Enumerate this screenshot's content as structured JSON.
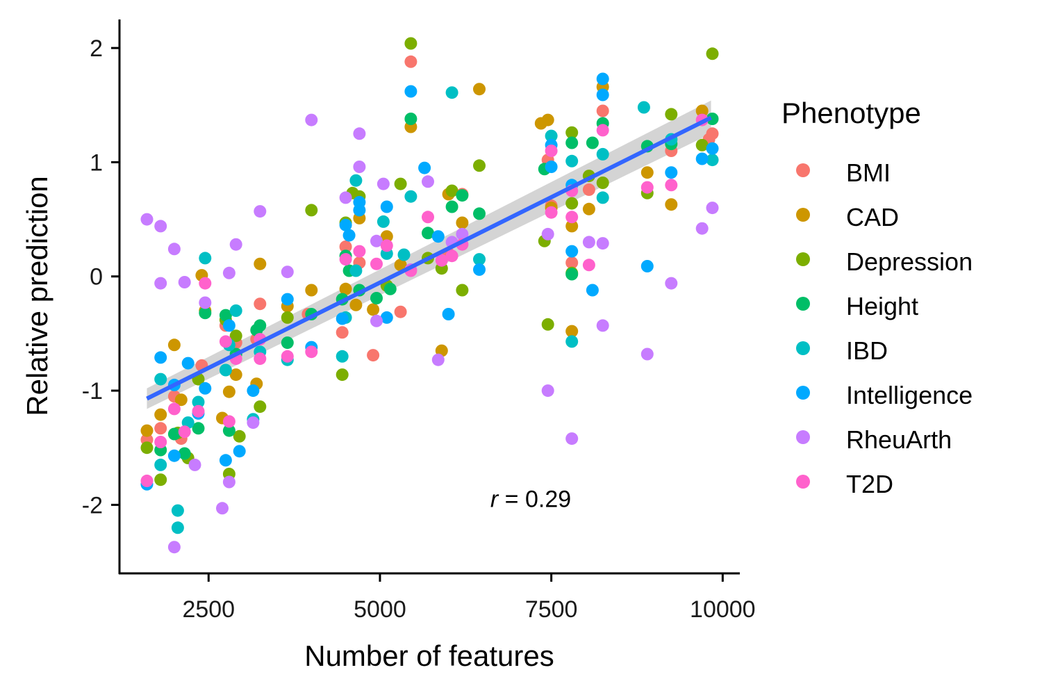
{
  "chart_data": {
    "type": "scatter",
    "xlabel": "Number of features",
    "ylabel": "Relative prediction",
    "xlim": [
      1200,
      10250
    ],
    "ylim": [
      -2.6,
      2.25
    ],
    "xticks": [
      2500,
      5000,
      7500,
      10000
    ],
    "xtick_labels": [
      "2500",
      "5000",
      "7500",
      "10000"
    ],
    "yticks": [
      -2,
      -1,
      0,
      1,
      2
    ],
    "ytick_labels": [
      "-2",
      "-1",
      "0",
      "1",
      "2"
    ],
    "legend_title": "Phenotype",
    "legend_position": "right",
    "annotation": {
      "var": "r",
      "text": " = 0.29",
      "x": 7200,
      "y": -2.02
    },
    "trend": {
      "x": [
        1600,
        9830
      ],
      "y": [
        -1.07,
        1.39
      ],
      "band_lower": [
        -1.16,
        1.25
      ],
      "band_upper": [
        -0.98,
        1.54
      ],
      "color": "#3366FF",
      "band_color": "#cccccc"
    },
    "series": [
      {
        "name": "BMI",
        "color": "#F8766D",
        "points": [
          [
            1600,
            -1.43
          ],
          [
            1800,
            -1.33
          ],
          [
            2000,
            -1.05
          ],
          [
            2100,
            -1.42
          ],
          [
            2400,
            -0.78
          ],
          [
            2750,
            -0.43
          ],
          [
            2900,
            -0.58
          ],
          [
            3200,
            -0.55
          ],
          [
            3250,
            -0.24
          ],
          [
            3950,
            -0.33
          ],
          [
            4450,
            -0.49
          ],
          [
            4500,
            0.26
          ],
          [
            4700,
            0.12
          ],
          [
            4900,
            -0.69
          ],
          [
            5300,
            -0.31
          ],
          [
            5450,
            1.88
          ],
          [
            6000,
            0.2
          ],
          [
            6200,
            0.72
          ],
          [
            7450,
            1.02
          ],
          [
            7500,
            0.62
          ],
          [
            7800,
            0.12
          ],
          [
            8050,
            0.76
          ],
          [
            8250,
            1.45
          ],
          [
            9250,
            1.1
          ],
          [
            9800,
            1.2
          ],
          [
            9850,
            1.25
          ]
        ]
      },
      {
        "name": "CAD",
        "color": "#CD9600",
        "points": [
          [
            1600,
            -1.35
          ],
          [
            1800,
            -1.21
          ],
          [
            2000,
            -0.6
          ],
          [
            2100,
            -1.08
          ],
          [
            2400,
            0.01
          ],
          [
            2450,
            -0.3
          ],
          [
            2700,
            -1.24
          ],
          [
            2800,
            -1.01
          ],
          [
            2900,
            -0.86
          ],
          [
            3200,
            -0.94
          ],
          [
            3250,
            0.11
          ],
          [
            3650,
            -0.26
          ],
          [
            4000,
            -0.12
          ],
          [
            4500,
            -0.11
          ],
          [
            4650,
            -0.25
          ],
          [
            4700,
            0.51
          ],
          [
            4900,
            -0.29
          ],
          [
            5100,
            0.35
          ],
          [
            5300,
            0.1
          ],
          [
            5450,
            1.31
          ],
          [
            5900,
            -0.65
          ],
          [
            6000,
            0.72
          ],
          [
            6200,
            0.47
          ],
          [
            6450,
            1.64
          ],
          [
            7350,
            1.34
          ],
          [
            7450,
            1.37
          ],
          [
            7500,
            0.6
          ],
          [
            7800,
            -0.48
          ],
          [
            7800,
            0.44
          ],
          [
            8050,
            0.59
          ],
          [
            8250,
            1.66
          ],
          [
            8900,
            0.91
          ],
          [
            9250,
            0.63
          ],
          [
            9700,
            1.45
          ]
        ]
      },
      {
        "name": "Depression",
        "color": "#7CAE00",
        "points": [
          [
            1600,
            -1.5
          ],
          [
            1800,
            -1.78
          ],
          [
            2050,
            -1.37
          ],
          [
            2200,
            -1.59
          ],
          [
            2350,
            -0.9
          ],
          [
            2750,
            -0.38
          ],
          [
            2800,
            -1.73
          ],
          [
            2900,
            -0.52
          ],
          [
            2950,
            -1.4
          ],
          [
            3250,
            -1.14
          ],
          [
            3650,
            -0.36
          ],
          [
            4000,
            0.58
          ],
          [
            4450,
            -0.86
          ],
          [
            4500,
            0.47
          ],
          [
            4600,
            0.73
          ],
          [
            4700,
            0.7
          ],
          [
            5100,
            -0.08
          ],
          [
            5300,
            0.81
          ],
          [
            5450,
            2.04
          ],
          [
            5700,
            0.16
          ],
          [
            5900,
            0.07
          ],
          [
            6050,
            0.75
          ],
          [
            6200,
            -0.12
          ],
          [
            6450,
            0.97
          ],
          [
            7400,
            0.31
          ],
          [
            7450,
            -0.42
          ],
          [
            7800,
            1.26
          ],
          [
            7800,
            0.64
          ],
          [
            7800,
            0.03
          ],
          [
            8050,
            0.88
          ],
          [
            8250,
            0.82
          ],
          [
            8900,
            0.73
          ],
          [
            9250,
            1.42
          ],
          [
            9700,
            1.15
          ],
          [
            9850,
            1.95
          ]
        ]
      },
      {
        "name": "Height",
        "color": "#00BE67",
        "points": [
          [
            1800,
            -1.52
          ],
          [
            2000,
            -1.38
          ],
          [
            2150,
            -1.55
          ],
          [
            2350,
            -1.33
          ],
          [
            2450,
            -0.32
          ],
          [
            2750,
            -0.34
          ],
          [
            2800,
            -1.35
          ],
          [
            2900,
            -0.68
          ],
          [
            3200,
            -0.47
          ],
          [
            3250,
            -0.43
          ],
          [
            3650,
            -0.58
          ],
          [
            4000,
            -0.33
          ],
          [
            4450,
            -0.2
          ],
          [
            4500,
            0.18
          ],
          [
            4550,
            0.05
          ],
          [
            4700,
            -0.12
          ],
          [
            4950,
            -0.19
          ],
          [
            5150,
            -0.11
          ],
          [
            5450,
            1.38
          ],
          [
            5700,
            0.38
          ],
          [
            6050,
            0.61
          ],
          [
            6200,
            0.71
          ],
          [
            6450,
            0.55
          ],
          [
            7400,
            0.94
          ],
          [
            7800,
            0.02
          ],
          [
            7800,
            1.17
          ],
          [
            8100,
            1.17
          ],
          [
            8250,
            1.34
          ],
          [
            8900,
            1.14
          ],
          [
            9250,
            1.16
          ],
          [
            9850,
            1.38
          ]
        ]
      },
      {
        "name": "IBD",
        "color": "#00BFC4",
        "points": [
          [
            1800,
            -1.65
          ],
          [
            1800,
            -0.9
          ],
          [
            2050,
            -2.05
          ],
          [
            2050,
            -2.2
          ],
          [
            2200,
            -1.28
          ],
          [
            2350,
            -1.1
          ],
          [
            2450,
            0.16
          ],
          [
            2750,
            -0.82
          ],
          [
            2800,
            -0.6
          ],
          [
            2900,
            -0.3
          ],
          [
            3150,
            -1.25
          ],
          [
            3250,
            -0.66
          ],
          [
            3650,
            -0.73
          ],
          [
            4450,
            -0.7
          ],
          [
            4500,
            -0.36
          ],
          [
            4650,
            0.05
          ],
          [
            4650,
            0.84
          ],
          [
            5050,
            0.48
          ],
          [
            5100,
            0.2
          ],
          [
            5350,
            0.19
          ],
          [
            5450,
            0.7
          ],
          [
            6050,
            1.61
          ],
          [
            6450,
            0.15
          ],
          [
            7500,
            1.23
          ],
          [
            7800,
            -0.57
          ],
          [
            7800,
            1.01
          ],
          [
            8250,
            0.69
          ],
          [
            8250,
            1.07
          ],
          [
            8850,
            1.48
          ],
          [
            9250,
            1.2
          ],
          [
            9850,
            1.02
          ]
        ]
      },
      {
        "name": "Intelligence",
        "color": "#00A9FF",
        "points": [
          [
            1600,
            -1.82
          ],
          [
            1800,
            -0.71
          ],
          [
            2000,
            -0.95
          ],
          [
            2000,
            -1.57
          ],
          [
            2200,
            -0.76
          ],
          [
            2350,
            -1.2
          ],
          [
            2450,
            -0.98
          ],
          [
            2750,
            -1.61
          ],
          [
            2800,
            -0.43
          ],
          [
            2950,
            -1.53
          ],
          [
            3150,
            -1.0
          ],
          [
            3650,
            -0.2
          ],
          [
            4000,
            -0.62
          ],
          [
            4450,
            -0.37
          ],
          [
            4500,
            0.45
          ],
          [
            4550,
            0.36
          ],
          [
            4700,
            0.58
          ],
          [
            4700,
            0.65
          ],
          [
            5100,
            0.61
          ],
          [
            5100,
            -0.36
          ],
          [
            5450,
            1.62
          ],
          [
            5650,
            0.95
          ],
          [
            5850,
            0.35
          ],
          [
            6000,
            -0.33
          ],
          [
            6450,
            0.06
          ],
          [
            7500,
            1.15
          ],
          [
            7500,
            0.96
          ],
          [
            7800,
            0.22
          ],
          [
            7800,
            0.8
          ],
          [
            8100,
            -0.12
          ],
          [
            8250,
            1.73
          ],
          [
            8250,
            1.59
          ],
          [
            8900,
            0.09
          ],
          [
            9250,
            0.91
          ],
          [
            9700,
            1.03
          ],
          [
            9850,
            1.12
          ]
        ]
      },
      {
        "name": "RheuArth",
        "color": "#C77CFF",
        "points": [
          [
            1600,
            0.5
          ],
          [
            1800,
            -0.06
          ],
          [
            1800,
            0.44
          ],
          [
            2000,
            0.24
          ],
          [
            2000,
            -2.37
          ],
          [
            2150,
            -0.05
          ],
          [
            2300,
            -1.65
          ],
          [
            2450,
            -0.23
          ],
          [
            2700,
            -2.03
          ],
          [
            2800,
            0.03
          ],
          [
            2800,
            -1.8
          ],
          [
            2900,
            0.28
          ],
          [
            3150,
            -1.28
          ],
          [
            3250,
            0.57
          ],
          [
            3650,
            0.04
          ],
          [
            4000,
            1.37
          ],
          [
            4500,
            0.69
          ],
          [
            4700,
            1.25
          ],
          [
            4700,
            0.96
          ],
          [
            4950,
            0.31
          ],
          [
            4950,
            -0.39
          ],
          [
            5050,
            0.81
          ],
          [
            5450,
            0.06
          ],
          [
            5700,
            0.83
          ],
          [
            5850,
            -0.73
          ],
          [
            6050,
            0.3
          ],
          [
            6200,
            0.37
          ],
          [
            7450,
            0.37
          ],
          [
            7450,
            -1.0
          ],
          [
            7800,
            -1.42
          ],
          [
            8050,
            0.3
          ],
          [
            8250,
            0.29
          ],
          [
            8250,
            -0.43
          ],
          [
            8900,
            -0.68
          ],
          [
            9250,
            -0.06
          ],
          [
            9700,
            0.42
          ],
          [
            9850,
            0.6
          ]
        ]
      },
      {
        "name": "T2D",
        "color": "#FF61CC",
        "points": [
          [
            1600,
            -1.79
          ],
          [
            1800,
            -1.45
          ],
          [
            2000,
            -1.16
          ],
          [
            2150,
            -1.36
          ],
          [
            2350,
            -1.18
          ],
          [
            2450,
            -0.06
          ],
          [
            2750,
            -0.57
          ],
          [
            2800,
            -1.27
          ],
          [
            2900,
            -0.72
          ],
          [
            3250,
            -0.72
          ],
          [
            3250,
            -0.55
          ],
          [
            3650,
            -0.7
          ],
          [
            4000,
            -0.66
          ],
          [
            4500,
            0.15
          ],
          [
            4700,
            0.22
          ],
          [
            4950,
            0.11
          ],
          [
            5100,
            0.27
          ],
          [
            5450,
            0.05
          ],
          [
            5700,
            0.52
          ],
          [
            5900,
            0.14
          ],
          [
            6050,
            0.18
          ],
          [
            6200,
            0.28
          ],
          [
            7500,
            1.1
          ],
          [
            7500,
            0.56
          ],
          [
            7800,
            0.75
          ],
          [
            7800,
            0.52
          ],
          [
            8050,
            0.1
          ],
          [
            8250,
            1.28
          ],
          [
            8900,
            0.78
          ],
          [
            9250,
            0.8
          ],
          [
            9700,
            1.37
          ]
        ]
      }
    ]
  }
}
